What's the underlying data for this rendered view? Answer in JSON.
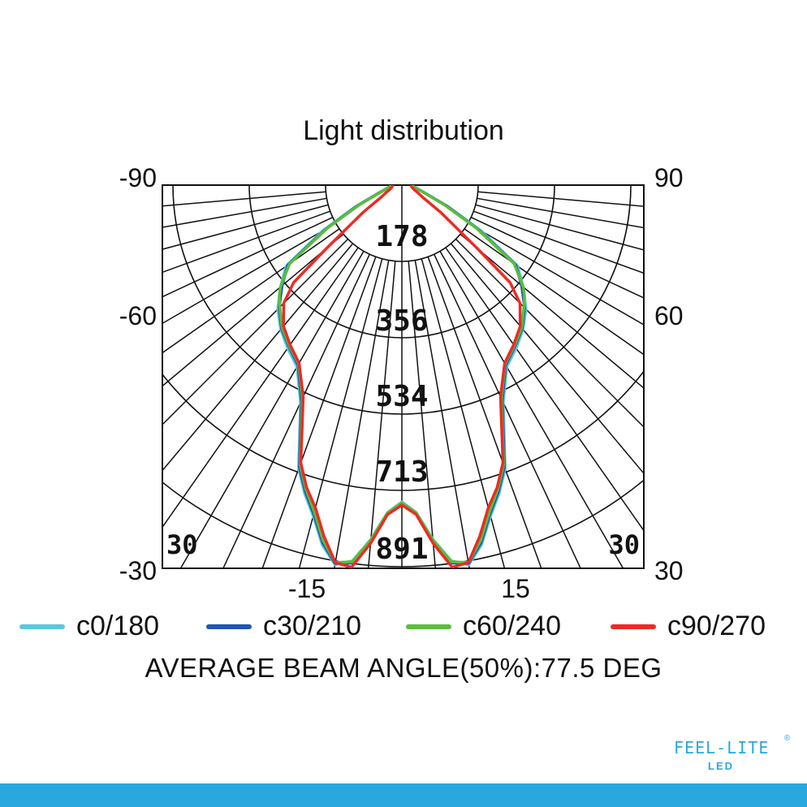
{
  "chart_data": {
    "type": "polar-line",
    "title": "Light distribution",
    "radial_ticks": [
      "178",
      "356",
      "534",
      "713",
      "891"
    ],
    "radial_max": 891,
    "left_tick_labels": [
      "-90",
      "-60",
      "-30"
    ],
    "right_tick_labels": [
      "90",
      "60",
      "30"
    ],
    "bottom_tick_labels": [
      "-15",
      "15"
    ],
    "corner_labels": [
      "30",
      "30"
    ],
    "grid": true,
    "angle_step_deg": 5,
    "angles": [
      0,
      2.5,
      5,
      7.5,
      10,
      12.5,
      15,
      17.5,
      20,
      25,
      30,
      35,
      40,
      45,
      48,
      50,
      55,
      60,
      65,
      70,
      80,
      90
    ],
    "series": [
      {
        "name": "c0/180",
        "color": "#5bc8dc",
        "values": [
          740,
          765,
          830,
          885,
          900,
          860,
          800,
          755,
          705,
          560,
          490,
          465,
          440,
          410,
          385,
          370,
          330,
          215,
          120,
          65,
          32,
          22
        ]
      },
      {
        "name": "c30/210",
        "color": "#1f55b5",
        "values": [
          745,
          768,
          835,
          890,
          897,
          855,
          795,
          750,
          700,
          555,
          485,
          460,
          437,
          405,
          380,
          365,
          325,
          205,
          115,
          62,
          31,
          22
        ]
      },
      {
        "name": "c60/240",
        "color": "#5cbd3a",
        "values": [
          742,
          766,
          832,
          887,
          895,
          850,
          790,
          745,
          695,
          550,
          482,
          458,
          435,
          403,
          385,
          370,
          320,
          200,
          110,
          60,
          30,
          22
        ]
      },
      {
        "name": "c90/270",
        "color": "#ee2a24",
        "values": [
          747,
          770,
          840,
          900,
          895,
          840,
          780,
          740,
          690,
          545,
          480,
          455,
          430,
          390,
          340,
          230,
          110,
          55,
          40,
          30,
          23,
          22
        ]
      }
    ]
  },
  "beam_text": "AVERAGE BEAM ANGLE(50%):77.5  DEG",
  "logo": {
    "main": "FEEL-LITE",
    "sub": "LED",
    "reg": "®"
  },
  "colors": {
    "brand": "#29a8e0"
  }
}
